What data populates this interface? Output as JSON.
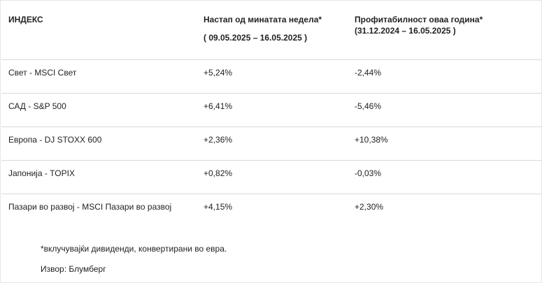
{
  "table": {
    "headers": {
      "index": "ИНДЕКС",
      "weekly": "Настап од минатата недела*",
      "weekly_range": "( 09.05.2025 –  16.05.2025 )",
      "ytd": "Профитабилност оваа година*",
      "ytd_range": "(31.12.2024 –  16.05.2025 )"
    },
    "rows": [
      {
        "name": "Свет - MSCI Свет",
        "weekly": "+5,24%",
        "ytd": "-2,44%"
      },
      {
        "name": "САД - S&P 500",
        "weekly": "+6,41%",
        "ytd": "-5,46%"
      },
      {
        "name": "Европа - DJ STOXX 600",
        "weekly": "+2,36%",
        "ytd": "+10,38%"
      },
      {
        "name": "Јапонија - TOPIX",
        "weekly": "+0,82%",
        "ytd": "-0,03%"
      },
      {
        "name": "Пазари во развој - MSCI Пазари во развој",
        "weekly": "+4,15%",
        "ytd": "+2,30%"
      }
    ]
  },
  "footnote": "*вклучувајќи дивиденди,  конвертирани во евра.",
  "source": "Извор: Блумберг"
}
